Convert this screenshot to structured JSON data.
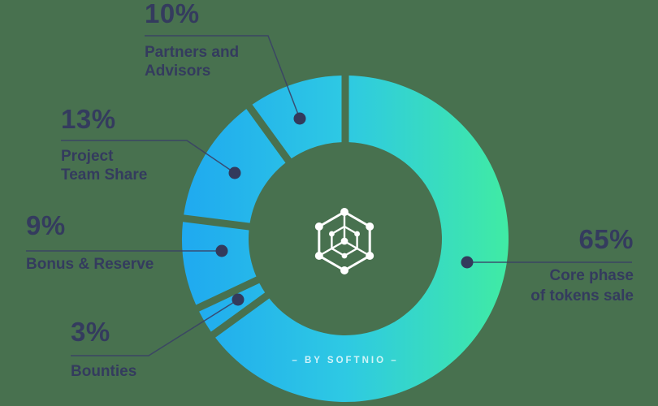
{
  "page": {
    "background": "#48714F"
  },
  "branding": {
    "byline": "– BY SOFTNIO –",
    "logo": "blockchain-cube-icon"
  },
  "chart_data": {
    "type": "pie",
    "subtype": "donut",
    "title": "",
    "unit": "%",
    "start_angle_deg": 0,
    "direction": "clockwise",
    "inner_radius_ratio": 0.59,
    "legend_position": "callout-labels",
    "segments": [
      {
        "name": "core",
        "value": 65,
        "pct_label": "65%",
        "label_lines": [
          "Core phase",
          "of tokens sale"
        ]
      },
      {
        "name": "bounties",
        "value": 3,
        "pct_label": "3%",
        "label_lines": [
          "Bounties"
        ]
      },
      {
        "name": "bonus-reserve",
        "value": 9,
        "pct_label": "9%",
        "label_lines": [
          "Bonus & Reserve"
        ]
      },
      {
        "name": "team-share",
        "value": 13,
        "pct_label": "13%",
        "label_lines": [
          "Project",
          "Team Share"
        ]
      },
      {
        "name": "partners",
        "value": 10,
        "pct_label": "10%",
        "label_lines": [
          "Partners and",
          "Advisors"
        ]
      }
    ],
    "colors": {
      "gradient_left": "#1FA9F0",
      "gradient_mid": "#2EC9E3",
      "gradient_right": "#40EBA4",
      "label_text": "#343B5E",
      "leader_line": "#3A4166",
      "anchor_dot": "#333A5C",
      "logo": "#FFFFFF",
      "byline_text": "rgba(255,255,255,.78)",
      "background": "#48714F"
    }
  }
}
